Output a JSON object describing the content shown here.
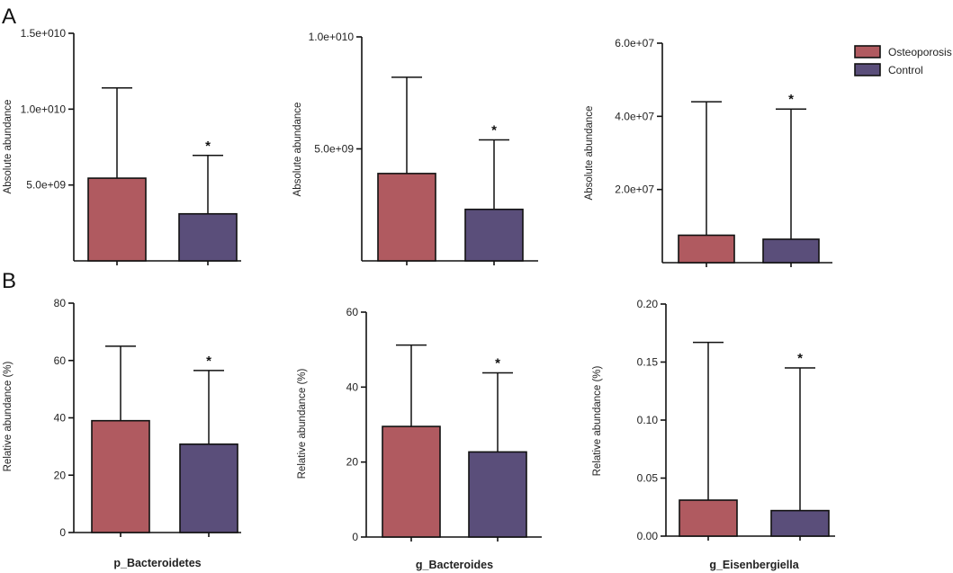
{
  "panel_labels": [
    "A",
    "B"
  ],
  "legend": [
    {
      "name": "Osteoporosis",
      "color": "#b05a60"
    },
    {
      "name": "Control",
      "color": "#5a4e7a"
    }
  ],
  "chart_data": [
    {
      "type": "bar",
      "panel": "A",
      "taxon": "p_Bacteroidetes",
      "ylabel": "Absolute abundance",
      "xlabel": "",
      "ylim": [
        0,
        15000000000
      ],
      "yticks": [
        5000000000,
        10000000000,
        15000000000
      ],
      "ytick_labels": [
        "5.0e+09",
        "1.0e+010",
        "1.5e+010"
      ],
      "series": [
        {
          "name": "Osteoporosis",
          "value": 5450000000,
          "error_upper": 11400000000,
          "significance": ""
        },
        {
          "name": "Control",
          "value": 3100000000,
          "error_upper": 6950000000,
          "significance": "*"
        }
      ]
    },
    {
      "type": "bar",
      "panel": "A",
      "taxon": "g_Bacteroides",
      "ylabel": "Absolute abundance",
      "xlabel": "",
      "ylim": [
        0,
        10000000000
      ],
      "yticks": [
        5000000000,
        10000000000
      ],
      "ytick_labels": [
        "5.0e+09",
        "1.0e+010"
      ],
      "series": [
        {
          "name": "Osteoporosis",
          "value": 3900000000,
          "error_upper": 8200000000,
          "significance": ""
        },
        {
          "name": "Control",
          "value": 2300000000,
          "error_upper": 5400000000,
          "significance": "*"
        }
      ]
    },
    {
      "type": "bar",
      "panel": "A",
      "taxon": "g_Eisenbergiella",
      "ylabel": "Absolute abundance",
      "xlabel": "",
      "ylim": [
        0,
        60000000
      ],
      "yticks": [
        20000000,
        40000000,
        60000000
      ],
      "ytick_labels": [
        "2.0e+07",
        "4.0e+07",
        "6.0e+07"
      ],
      "series": [
        {
          "name": "Osteoporosis",
          "value": 7500000,
          "error_upper": 44000000,
          "significance": ""
        },
        {
          "name": "Control",
          "value": 6400000,
          "error_upper": 42000000,
          "significance": "*"
        }
      ]
    },
    {
      "type": "bar",
      "panel": "B",
      "taxon": "p_Bacteroidetes",
      "ylabel": "Relative abundance (%)",
      "xlabel": "p_Bacteroidetes",
      "ylim": [
        0,
        80
      ],
      "yticks": [
        0,
        20,
        40,
        60,
        80
      ],
      "ytick_labels": [
        "0",
        "20",
        "40",
        "60",
        "80"
      ],
      "series": [
        {
          "name": "Osteoporosis",
          "value": 39,
          "error_upper": 65,
          "significance": ""
        },
        {
          "name": "Control",
          "value": 30.8,
          "error_upper": 56.5,
          "significance": "*"
        }
      ]
    },
    {
      "type": "bar",
      "panel": "B",
      "taxon": "g_Bacteroides",
      "ylabel": "Relative abundance (%)",
      "xlabel": "g_Bacteroides",
      "ylim": [
        0,
        60
      ],
      "yticks": [
        0,
        20,
        40,
        60
      ],
      "ytick_labels": [
        "0",
        "20",
        "40",
        "60"
      ],
      "series": [
        {
          "name": "Osteoporosis",
          "value": 29.5,
          "error_upper": 51.2,
          "significance": ""
        },
        {
          "name": "Control",
          "value": 22.7,
          "error_upper": 43.8,
          "significance": "*"
        }
      ]
    },
    {
      "type": "bar",
      "panel": "B",
      "taxon": "g_Eisenbergiella",
      "ylabel": "Relative abundance (%)",
      "xlabel": "g_Eisenbergiella",
      "ylim": [
        0,
        0.2
      ],
      "yticks": [
        0,
        0.05,
        0.1,
        0.15,
        0.2
      ],
      "ytick_labels": [
        "0.00",
        "0.05",
        "0.10",
        "0.15",
        "0.20"
      ],
      "series": [
        {
          "name": "Osteoporosis",
          "value": 0.031,
          "error_upper": 0.167,
          "significance": ""
        },
        {
          "name": "Control",
          "value": 0.022,
          "error_upper": 0.145,
          "significance": "*"
        }
      ]
    }
  ]
}
